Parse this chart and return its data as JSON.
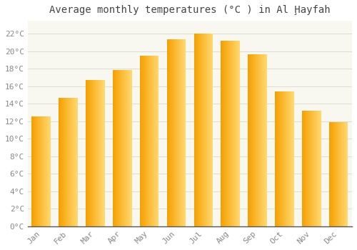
{
  "title": "Average monthly temperatures (°C ) in Al Ḩayfah",
  "months": [
    "Jan",
    "Feb",
    "Mar",
    "Apr",
    "May",
    "Jun",
    "Jul",
    "Aug",
    "Sep",
    "Oct",
    "Nov",
    "Dec"
  ],
  "temperatures": [
    12.6,
    14.7,
    16.7,
    17.9,
    19.5,
    21.4,
    22.0,
    21.2,
    19.7,
    15.4,
    13.2,
    11.9
  ],
  "bar_color_left": "#F5A800",
  "bar_color_right": "#FFD870",
  "bar_border_color": "#C88000",
  "background_color": "#FFFFFF",
  "plot_bg_color": "#F8F8F0",
  "grid_color": "#DDDDCC",
  "ylim": [
    0,
    23.5
  ],
  "yticks": [
    0,
    2,
    4,
    6,
    8,
    10,
    12,
    14,
    16,
    18,
    20,
    22
  ],
  "ytick_labels": [
    "0°C",
    "2°C",
    "4°C",
    "6°C",
    "8°C",
    "10°C",
    "12°C",
    "14°C",
    "16°C",
    "18°C",
    "20°C",
    "22°C"
  ],
  "title_fontsize": 10,
  "tick_fontsize": 8,
  "font_family": "monospace",
  "tick_color": "#888888",
  "title_color": "#444444"
}
